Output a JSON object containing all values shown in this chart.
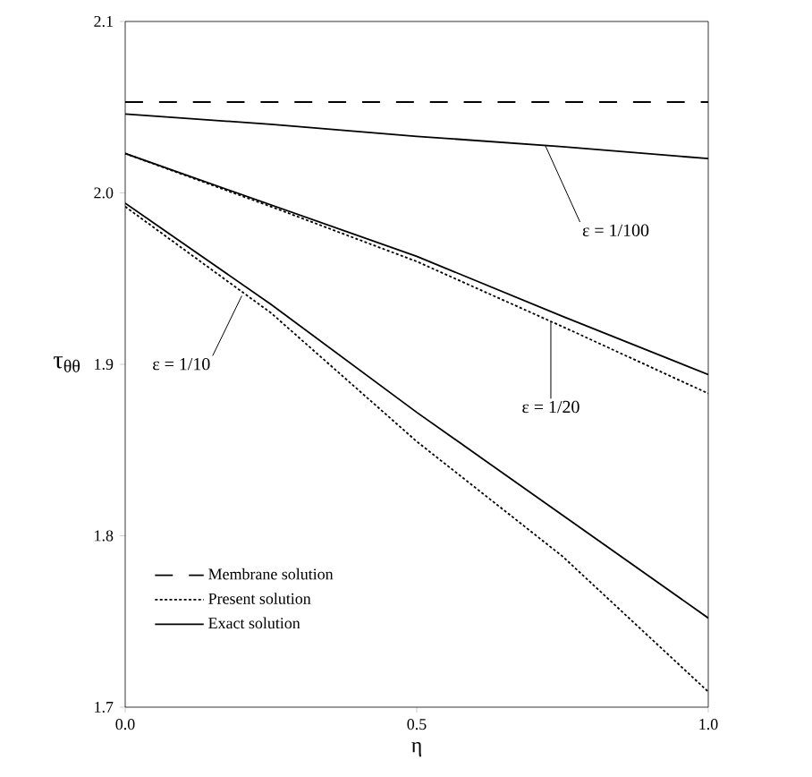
{
  "chart_data": {
    "type": "line",
    "xlabel": "η",
    "ylabel": "τ$_{θθ}$",
    "xlim": [
      0,
      1
    ],
    "ylim": [
      1.7,
      2.1
    ],
    "xticks": [
      {
        "value": 0,
        "label": "0.0"
      },
      {
        "value": 0.5,
        "label": "0.5"
      },
      {
        "value": 1,
        "label": "1.0"
      }
    ],
    "yticks": [
      1.7,
      1.8,
      1.9,
      {
        "value": 2,
        "label": "2.0"
      },
      2.1
    ],
    "grid": false,
    "legend": "bottom left",
    "marker": "none",
    "series": [
      {
        "name": "Membrane solution",
        "color": "#000000",
        "line_style": "dashed",
        "x": [
          0,
          1
        ],
        "values": [
          2.053,
          2.053
        ]
      },
      {
        "name": "Present solution",
        "color": "#000000",
        "line_style": "dotted",
        "x": [
          0,
          0.25,
          0.5,
          0.75,
          1
        ],
        "values": [
          2.023,
          1.992,
          1.96,
          1.922,
          1.883
        ]
      },
      {
        "color": "#000000",
        "line_style": "dotted",
        "x": [
          0,
          0.25,
          0.5,
          0.75,
          1
        ],
        "values": [
          1.992,
          1.93,
          1.855,
          1.788,
          1.709
        ]
      },
      {
        "name": "Exact solution",
        "color": "#000000",
        "line_style": "solid",
        "x": [
          0,
          0.25,
          0.5,
          0.75,
          1
        ],
        "values": [
          2.046,
          2.04,
          2.033,
          2.027,
          2.02
        ]
      },
      {
        "color": "#000000",
        "line_style": "solid",
        "x": [
          0,
          0.25,
          0.5,
          0.75,
          1
        ],
        "values": [
          2.023,
          1.993,
          1.963,
          1.928,
          1.894
        ]
      },
      {
        "color": "#000000",
        "line_style": "solid",
        "x": [
          0,
          0.25,
          0.5,
          0.75,
          1
        ],
        "values": [
          1.994,
          1.935,
          1.872,
          1.812,
          1.752
        ]
      }
    ],
    "annotations": [
      {
        "text": "ε = 1/100",
        "x": 0.72,
        "y": 2.028
      },
      {
        "text": "ε = 1/20",
        "x": 0.73,
        "y": 1.925
      },
      {
        "text": "ε = 1/10",
        "x": 0.2,
        "y": 1.94
      }
    ]
  }
}
